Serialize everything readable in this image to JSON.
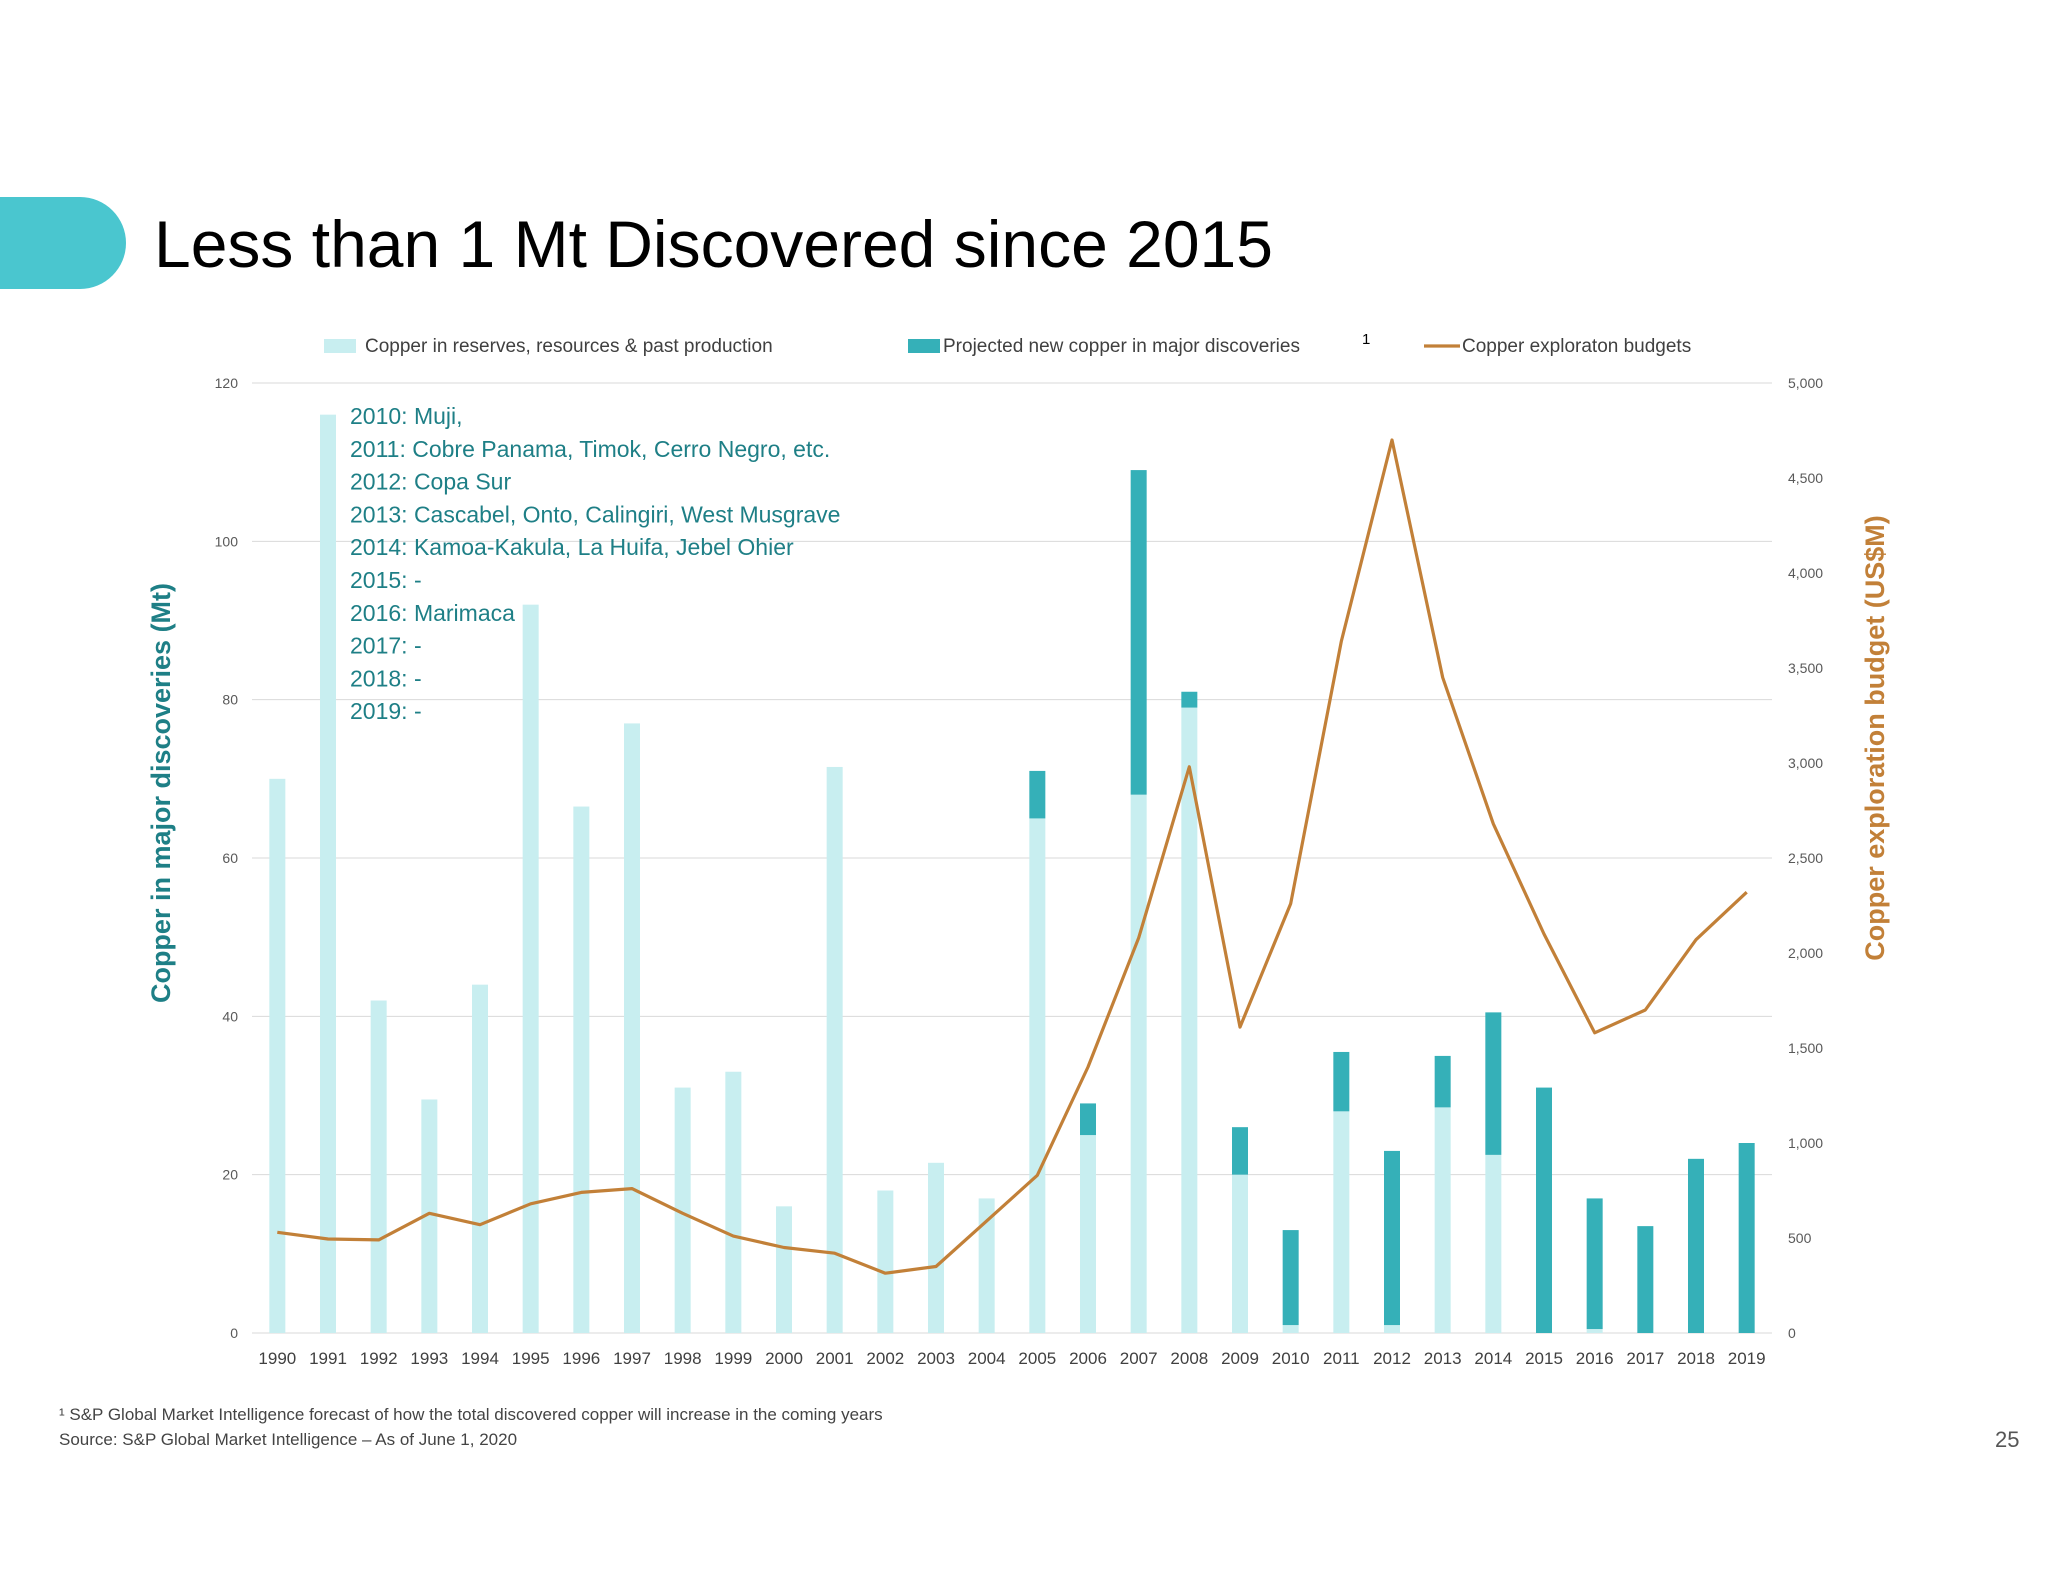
{
  "title": "Less than 1 Mt Discovered since 2015",
  "footnote_1": "¹ S&P Global Market Intelligence forecast of how the total discovered copper will increase in the coming years",
  "source": "Source: S&P Global Market Intelligence – As of June 1, 2020",
  "page_number": "25",
  "colors": {
    "accent_tab": "#4ac6cf",
    "reserves": "#c8eef0",
    "projected": "#35b0b8",
    "budget_line": "#c28038",
    "left_axis_title": "#1e7f86",
    "right_axis_title": "#c28038",
    "annotation": "#1e7f86"
  },
  "chart_data": {
    "type": "bar",
    "stacked": true,
    "categories": [
      "1990",
      "1991",
      "1992",
      "1993",
      "1994",
      "1995",
      "1996",
      "1997",
      "1998",
      "1999",
      "2000",
      "2001",
      "2002",
      "2003",
      "2004",
      "2005",
      "2006",
      "2007",
      "2008",
      "2009",
      "2010",
      "2011",
      "2012",
      "2013",
      "2014",
      "2015",
      "2016",
      "2017",
      "2018",
      "2019"
    ],
    "series": [
      {
        "name": "Copper in reserves, resources & past production",
        "kind": "bar",
        "axis": "left",
        "values": [
          70,
          116,
          42,
          29.5,
          44,
          92,
          66.5,
          77,
          31,
          33,
          16,
          71.5,
          18,
          21.5,
          17,
          65,
          25,
          68,
          79,
          20,
          1,
          28,
          1,
          28.5,
          22.5,
          0,
          0.5,
          0,
          0,
          0
        ]
      },
      {
        "name": "Projected new copper in major discoveries",
        "kind": "bar",
        "axis": "left",
        "values": [
          0,
          0,
          0,
          0,
          0,
          0,
          0,
          0,
          0,
          0,
          0,
          0,
          0,
          0,
          0,
          6,
          4,
          41,
          2,
          6,
          12,
          7.5,
          22,
          6.5,
          18,
          31,
          16.5,
          13.5,
          22,
          24
        ]
      },
      {
        "name": "Copper exploraton budgets",
        "kind": "line",
        "axis": "right",
        "values": [
          530,
          495,
          490,
          630,
          570,
          680,
          740,
          760,
          630,
          510,
          450,
          420,
          315,
          350,
          590,
          830,
          1400,
          2080,
          2980,
          1610,
          2260,
          3640,
          4700,
          3450,
          2680,
          2100,
          1580,
          1700,
          2070,
          2320
        ]
      }
    ],
    "legend_footnote_marker": "1",
    "left_axis": {
      "title": "Copper in major discoveries (Mt)",
      "min": 0,
      "max": 120,
      "ticks": [
        0,
        20,
        40,
        60,
        80,
        100,
        120
      ],
      "tick_labels": [
        "0",
        "20",
        "40",
        "60",
        "80",
        "100",
        "120"
      ]
    },
    "right_axis": {
      "title": "Copper exploration budget (US$M)",
      "min": 0,
      "max": 5000,
      "ticks": [
        0,
        500,
        1000,
        1500,
        2000,
        2500,
        3000,
        3500,
        4000,
        4500,
        5000
      ],
      "tick_labels": [
        "0",
        "500",
        "1,000",
        "1,500",
        "2,000",
        "2,500",
        "3,000",
        "3,500",
        "4,000",
        "4,500",
        "5,000"
      ]
    },
    "grid": true,
    "legend_position": "top",
    "annotations": [
      "2010: Muji,",
      "2011: Cobre Panama, Timok, Cerro Negro, etc.",
      "2012: Copa Sur",
      "2013: Cascabel, Onto, Calingiri, West Musgrave",
      "2014: Kamoa-Kakula, La Huifa, Jebel Ohier",
      "2015: -",
      "2016: Marimaca",
      "2017: -",
      "2018: -",
      "2019: -"
    ]
  }
}
